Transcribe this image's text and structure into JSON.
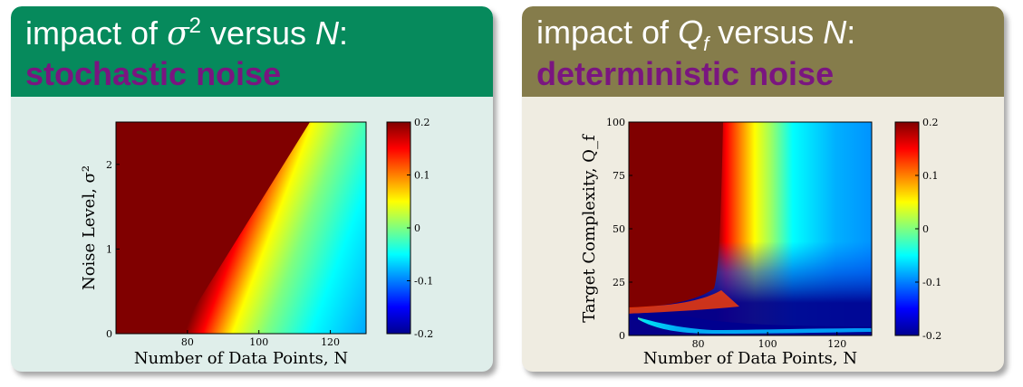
{
  "left_panel": {
    "title_prefix": "impact of ",
    "title_symbol": "σ",
    "title_superscript": "2",
    "title_middle": " versus ",
    "title_N": "N",
    "title_suffix": ":",
    "subtitle": "stochastic noise",
    "colors": {
      "header": "#068a5c",
      "body": "#dfeeea",
      "subtitle": "#7a1580"
    }
  },
  "right_panel": {
    "title_prefix": "impact of ",
    "title_symbol": "Q",
    "title_subscript": "f",
    "title_middle": " versus ",
    "title_N": "N",
    "title_suffix": ":",
    "subtitle": "deterministic noise",
    "colors": {
      "header": "#857c4b",
      "body": "#efece1",
      "subtitle": "#7a1580"
    }
  },
  "chart_data": [
    {
      "type": "heatmap",
      "xlabel": "Number of Data Points, N",
      "ylabel": "Noise Level, σ²",
      "x_ticks": [
        "80",
        "100",
        "120"
      ],
      "x_tick_values": [
        80,
        100,
        120
      ],
      "y_ticks": [
        "0",
        "1",
        "2"
      ],
      "y_tick_values": [
        0,
        1,
        2
      ],
      "xlim": [
        60,
        130
      ],
      "ylim": [
        0,
        2.5
      ],
      "colorbar": {
        "ticks": [
          "0.2",
          "0.1",
          "0",
          "-0.1",
          "-0.2"
        ],
        "tick_values": [
          0.2,
          0.1,
          0,
          -0.1,
          -0.2
        ],
        "range": [
          -0.2,
          0.2
        ],
        "colormap": "jet"
      }
    },
    {
      "type": "heatmap",
      "xlabel": "Number of Data Points, N",
      "ylabel": "Target Complexity, Q_f",
      "x_ticks": [
        "80",
        "100",
        "120"
      ],
      "x_tick_values": [
        80,
        100,
        120
      ],
      "y_ticks": [
        "0",
        "25",
        "50",
        "75",
        "100"
      ],
      "y_tick_values": [
        0,
        25,
        50,
        75,
        100
      ],
      "xlim": [
        60,
        130
      ],
      "ylim": [
        0,
        100
      ],
      "colorbar": {
        "ticks": [
          "0.2",
          "0.1",
          "0",
          "-0.1",
          "-0.2"
        ],
        "tick_values": [
          0.2,
          0.1,
          0,
          -0.1,
          -0.2
        ],
        "range": [
          -0.2,
          0.2
        ],
        "colormap": "jet"
      }
    }
  ]
}
